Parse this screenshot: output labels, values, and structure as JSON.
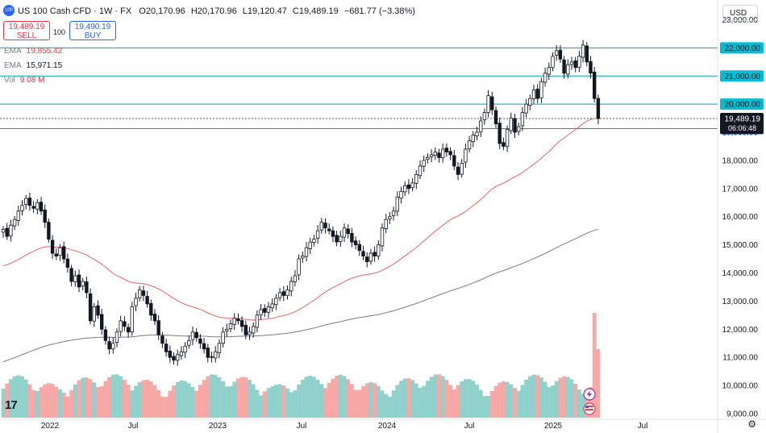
{
  "header": {
    "logo_text": "100",
    "title": "US 100 Cash CFD · 1W · FX",
    "open_label": "O",
    "open": "20,170.96",
    "high_label": "H",
    "high": "20,170.96",
    "low_label": "L",
    "low": "19,120.47",
    "close_label": "C",
    "close": "19,489.19",
    "change": "−681.77 (−3.38%)",
    "currency": "USD"
  },
  "trade": {
    "sell_price": "19,489.19",
    "sell_label": "SELL",
    "spread": "100",
    "buy_price": "19,490.19",
    "buy_label": "BUY"
  },
  "indicators": [
    {
      "label": "EMA",
      "value": "19,855.42",
      "color": "#f23645"
    },
    {
      "label": "EMA",
      "value": "15,971.15",
      "color": "#131722"
    },
    {
      "label": "Vol",
      "value": "9.08 M",
      "color": "#f23645"
    }
  ],
  "chart_data": {
    "type": "candlestick",
    "x_tick_labels": [
      "2022",
      "Jul",
      "2023",
      "Jul",
      "2024",
      "Jul",
      "2025",
      "Jul"
    ],
    "y_tick_labels": [
      "9,000.00",
      "10,000.00",
      "11,000.00",
      "12,000.00",
      "13,000.00",
      "14,000.00",
      "15,000.00",
      "16,000.00",
      "17,000.00",
      "18,000.00",
      "19,000.00",
      "20,000.00",
      "21,000.00",
      "22,000.00",
      "23,000.00"
    ],
    "y_ticks": [
      9000,
      10000,
      11000,
      12000,
      13000,
      14000,
      15000,
      16000,
      17000,
      18000,
      19000,
      20000,
      21000,
      22000,
      23000
    ],
    "ylim": [
      8800,
      23300
    ],
    "horizontal_levels": [
      {
        "value": 22000,
        "label": "22,000.00"
      },
      {
        "value": 21000,
        "label": "21,000.00"
      },
      {
        "value": 20000,
        "label": "20,000.00"
      },
      {
        "value": 19129.9,
        "label": "19,129.90"
      }
    ],
    "last_price": {
      "value": 19489.19,
      "label": "19,489.19",
      "countdown": "06:06:48"
    },
    "close_series": [
      15550,
      15300,
      15700,
      15900,
      16200,
      16400,
      16650,
      16400,
      16300,
      16500,
      16200,
      15800,
      15200,
      14700,
      14600,
      14900,
      14500,
      14200,
      13700,
      13900,
      13500,
      13700,
      13300,
      12300,
      12800,
      12500,
      12000,
      11600,
      11300,
      11500,
      11900,
      12300,
      12100,
      11900,
      12800,
      13100,
      13400,
      13200,
      12900,
      12500,
      12300,
      11800,
      11500,
      11200,
      11000,
      10900,
      11100,
      11200,
      11400,
      11600,
      11900,
      11700,
      11500,
      11300,
      11000,
      11000,
      11200,
      11500,
      11900,
      12000,
      12200,
      12400,
      12300,
      12100,
      11800,
      11900,
      12100,
      12500,
      12700,
      12600,
      12800,
      12900,
      13100,
      13300,
      13200,
      13400,
      13700,
      13900,
      14500,
      14600,
      14900,
      15100,
      15200,
      15500,
      15800,
      15600,
      15500,
      15300,
      15100,
      15300,
      15600,
      15400,
      15100,
      15000,
      14800,
      14600,
      14400,
      14700,
      14600,
      15000,
      15600,
      15900,
      16000,
      16200,
      16700,
      16900,
      17100,
      17000,
      17200,
      17500,
      17800,
      18000,
      18100,
      18200,
      18300,
      18100,
      18400,
      18300,
      18200,
      17800,
      17500,
      17900,
      18400,
      18700,
      18900,
      19000,
      19400,
      19700,
      20300,
      19800,
      19300,
      18600,
      18500,
      19100,
      19500,
      19000,
      19200,
      19700,
      20000,
      20200,
      20500,
      20200,
      20800,
      21100,
      21300,
      21700,
      21900,
      21600,
      21100,
      21400,
      21500,
      21300,
      21700,
      22100,
      21500,
      21100,
      20200,
      19489
    ],
    "ema_50_end": 19855.42,
    "ema_200_end": 15971.15,
    "volume_last": "9.08 M"
  }
}
